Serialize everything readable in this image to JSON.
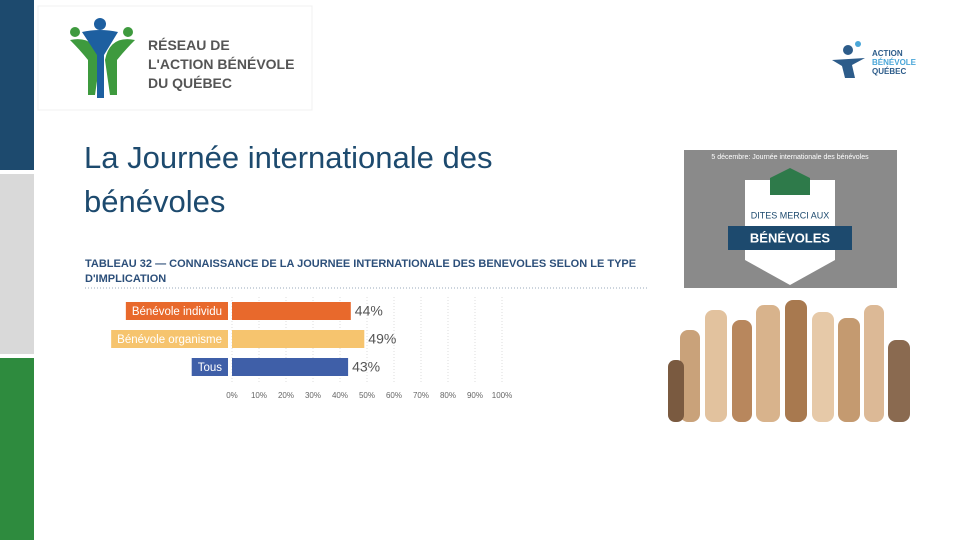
{
  "logo_left": {
    "lines": [
      "RÉSEAU DE",
      "L'ACTION BÉNÉVOLE",
      "DU QUÉBEC"
    ]
  },
  "logo_right": {
    "lines": [
      "ACTION",
      "BÉNÉVOLE",
      "QUÉBEC"
    ]
  },
  "slide_title": "La Journée internationale des bénévoles",
  "poster": {
    "caption": "5 décembre: Journée internationale des bénévoles",
    "line1": "DITES MERCI AUX",
    "line2": "BÉNÉVOLES"
  },
  "chart_data": {
    "type": "bar",
    "orientation": "horizontal",
    "title": "TABLEAU 32 — CONNAISSANCE DE LA JOURNEE INTERNATIONALE DES BENEVOLES SELON LE TYPE D'IMPLICATION",
    "categories": [
      "Bénévole individu",
      "Bénévole organisme",
      "Tous"
    ],
    "values": [
      44,
      49,
      43
    ],
    "value_labels": [
      "44%",
      "49%",
      "43%"
    ],
    "colors": [
      "#e8692c",
      "#f6c46e",
      "#3f5fa8"
    ],
    "xlim": [
      0,
      100
    ],
    "xticks": [
      {
        "value": 0,
        "label": "0%"
      },
      {
        "value": 10,
        "label": "10%"
      },
      {
        "value": 20,
        "label": "20%"
      },
      {
        "value": 30,
        "label": "30%"
      },
      {
        "value": 40,
        "label": "40%"
      },
      {
        "value": 50,
        "label": "50%"
      },
      {
        "value": 60,
        "label": "60%"
      },
      {
        "value": 70,
        "label": "70%"
      },
      {
        "value": 80,
        "label": "80%"
      },
      {
        "value": 90,
        "label": "90%"
      },
      {
        "value": 100,
        "label": "100%"
      }
    ],
    "grid": true
  }
}
